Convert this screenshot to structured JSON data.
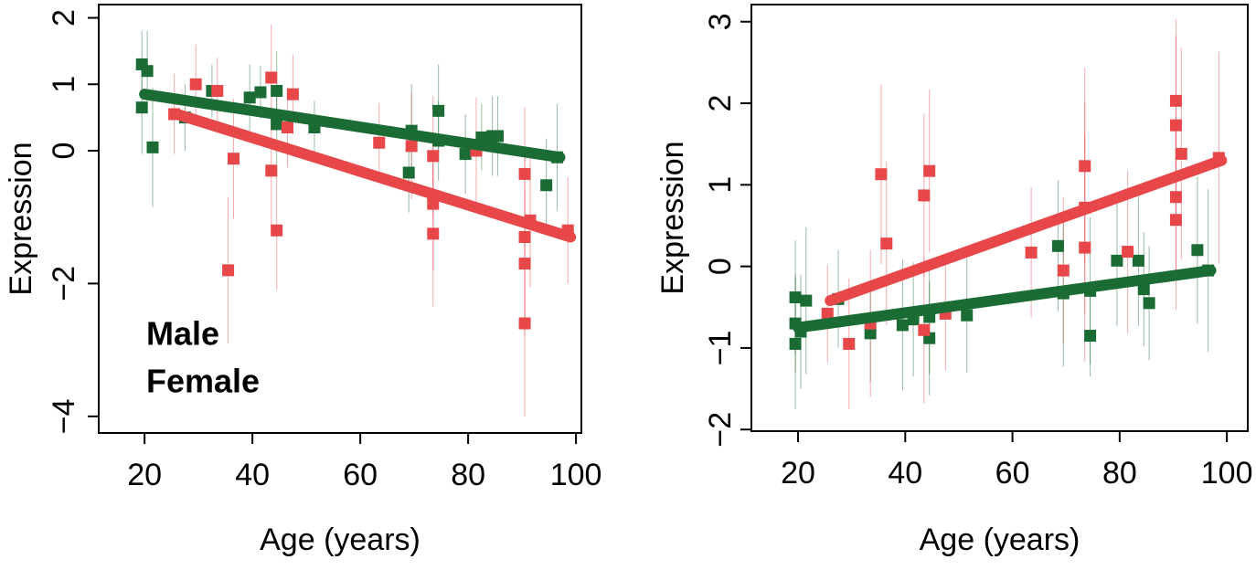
{
  "chart_data": [
    {
      "type": "scatter",
      "xlabel": "Age (years)",
      "ylabel": "Expression",
      "xlim": [
        11.5,
        101
      ],
      "ylim": [
        -4.25,
        2.2
      ],
      "xticks": [
        20,
        40,
        60,
        80,
        100
      ],
      "yticks": [
        {
          "value": -4,
          "label": "−4"
        },
        {
          "value": -2,
          "label": "−2"
        },
        0,
        1,
        2
      ],
      "legend": "bottom-left",
      "series": [
        {
          "name": "Male",
          "color": "#1b6b35",
          "x": [
            19.5,
            20.5,
            19.5,
            21.5,
            27.5,
            32.5,
            39.5,
            41.5,
            44.5,
            44.5,
            51.5,
            69,
            69.5,
            74.5,
            74.5,
            79.5,
            82.5,
            84.5,
            85.5,
            94.5,
            96.5
          ],
          "values": [
            1.3,
            1.2,
            0.65,
            0.05,
            0.5,
            0.9,
            0.8,
            0.88,
            0.9,
            0.4,
            0.35,
            -0.33,
            0.3,
            0.6,
            0.15,
            -0.05,
            0.2,
            0.22,
            0.22,
            -0.52,
            -0.1
          ],
          "errors": [
            0.5,
            0.6,
            0.7,
            0.9,
            0.5,
            0.4,
            0.5,
            0.4,
            0.6,
            0.6,
            0.4,
            0.6,
            0.7,
            0.7,
            0.6,
            0.6,
            0.5,
            0.6,
            0.6,
            0.7,
            0.8
          ],
          "fit": {
            "x": [
              20,
              97
            ],
            "values": [
              0.85,
              -0.1
            ]
          }
        },
        {
          "name": "Female",
          "color": "#e8474a",
          "x": [
            25.5,
            29.5,
            33.5,
            35.5,
            36.5,
            43.5,
            43.5,
            44.5,
            46.5,
            47.5,
            63.5,
            69.5,
            73.5,
            73.5,
            73.5,
            81.5,
            90.5,
            90.5,
            90.5,
            90.5,
            91.5,
            98.5
          ],
          "values": [
            0.55,
            1.0,
            0.9,
            -1.8,
            -0.12,
            1.1,
            -0.3,
            -1.2,
            0.35,
            0.85,
            0.12,
            0.07,
            -0.08,
            -0.8,
            -1.25,
            0,
            -0.35,
            -1.3,
            -1.7,
            -2.6,
            -1.05,
            -1.2
          ],
          "errors": [
            0.6,
            0.6,
            0.5,
            1.1,
            0.9,
            0.8,
            0.9,
            0.9,
            0.6,
            0.6,
            0.6,
            0.8,
            0.9,
            1.0,
            1.1,
            0.8,
            1.0,
            1.2,
            1.1,
            1.4,
            1.0,
            0.8
          ],
          "fit": {
            "x": [
              26,
              99
            ],
            "values": [
              0.55,
              -1.3
            ]
          }
        }
      ]
    },
    {
      "type": "scatter",
      "xlabel": "Age (years)",
      "ylabel": "Expression",
      "xlim": [
        11.3,
        103.9
      ],
      "ylim": [
        -2.02,
        3.21
      ],
      "xticks": [
        20,
        40,
        60,
        80,
        100
      ],
      "yticks": [
        {
          "value": -2,
          "label": "−2"
        },
        {
          "value": -1,
          "label": "−1"
        },
        0,
        1,
        2,
        3
      ],
      "series": [
        {
          "name": "Male",
          "color": "#1b6b35",
          "x": [
            19.5,
            19.5,
            19.5,
            20.5,
            21.5,
            27.5,
            33.5,
            39.5,
            41.5,
            44.5,
            44.5,
            51.5,
            68.5,
            69.5,
            74.5,
            74.5,
            79.5,
            83.5,
            84.5,
            85.5,
            94.5,
            96.5
          ],
          "values": [
            -0.38,
            -0.7,
            -0.95,
            -0.8,
            -0.42,
            -0.4,
            -0.82,
            -0.72,
            -0.65,
            -0.62,
            -0.88,
            -0.6,
            0.25,
            -0.33,
            -0.3,
            -0.85,
            0.07,
            0.07,
            -0.28,
            -0.45,
            0.2,
            -0.05
          ],
          "errors": [
            0.7,
            0.6,
            0.8,
            0.7,
            0.9,
            0.6,
            0.6,
            0.8,
            0.7,
            0.7,
            0.7,
            0.7,
            0.8,
            0.9,
            0.9,
            0.5,
            0.8,
            0.8,
            0.7,
            0.7,
            0.9,
            1.0
          ],
          "fit": {
            "x": [
              20,
              97
            ],
            "values": [
              -0.75,
              -0.05
            ]
          }
        },
        {
          "name": "Female",
          "color": "#e8474a",
          "x": [
            25.5,
            29.5,
            33.5,
            35.5,
            36.5,
            43.5,
            43.5,
            44.5,
            47.5,
            63.5,
            69.5,
            73.5,
            73.5,
            73.5,
            81.5,
            90.5,
            90.5,
            90.5,
            90.5,
            91.5,
            98.5
          ],
          "values": [
            -0.58,
            -0.95,
            -0.7,
            1.13,
            0.28,
            0.87,
            -0.78,
            1.17,
            -0.58,
            0.17,
            -0.05,
            1.23,
            0.72,
            0.23,
            0.18,
            2.03,
            1.73,
            0.85,
            0.57,
            1.38,
            1.33
          ],
          "errors": [
            0.6,
            0.8,
            0.9,
            1.1,
            1.0,
            1.0,
            0.9,
            1.0,
            0.7,
            0.8,
            0.9,
            1.2,
            1.3,
            1.4,
            1.0,
            1.0,
            1.1,
            1.0,
            1.1,
            1.3,
            1.3
          ],
          "fit": {
            "x": [
              26,
              99
            ],
            "values": [
              -0.42,
              1.3
            ]
          }
        }
      ]
    }
  ]
}
